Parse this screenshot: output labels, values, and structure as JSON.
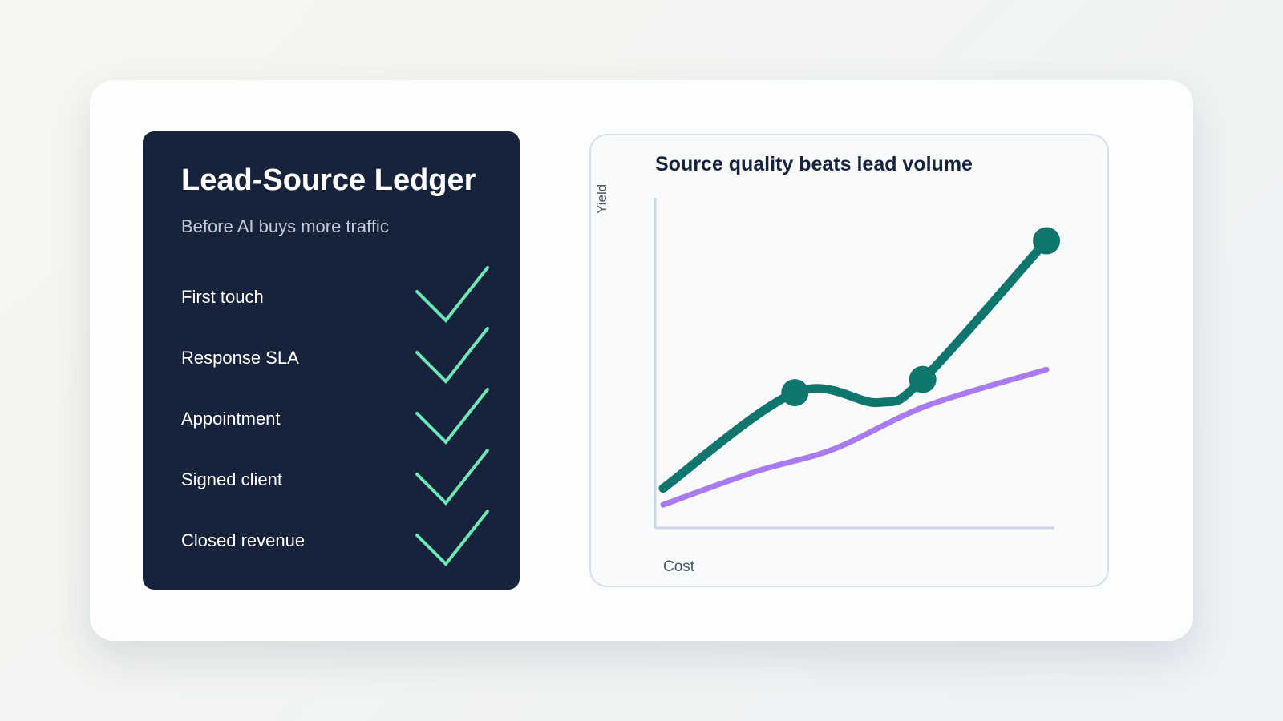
{
  "ledger": {
    "title": "Lead-Source Ledger",
    "subtitle": "Before AI buys more traffic",
    "steps": [
      {
        "label": "First touch",
        "status": "check",
        "icon": "check-icon"
      },
      {
        "label": "Response SLA",
        "status": "check",
        "icon": "check-icon"
      },
      {
        "label": "Appointment",
        "status": "check",
        "icon": "check-icon"
      },
      {
        "label": "Signed client",
        "status": "check",
        "icon": "check-icon"
      },
      {
        "label": "Closed revenue",
        "status": "check",
        "icon": "check-icon"
      }
    ],
    "check_color": "#6ee7b7",
    "background": "#17233b"
  },
  "chart_data": {
    "type": "line",
    "title": "Source quality beats lead volume",
    "xlabel": "Cost",
    "ylabel": "Yield",
    "xlim": [
      0,
      100
    ],
    "ylim": [
      0,
      100
    ],
    "grid": false,
    "ticks_shown": false,
    "series": [
      {
        "color": "#0f766e",
        "x": [
          2,
          35,
          56,
          67,
          98
        ],
        "y": [
          12,
          41,
          38,
          45,
          87
        ],
        "markers_at_index": [
          1,
          3,
          4
        ]
      },
      {
        "color": "#a87bf0",
        "x": [
          2,
          25,
          45,
          68,
          98
        ],
        "y": [
          7,
          17,
          24,
          37,
          48
        ],
        "markers_at_index": []
      }
    ]
  }
}
